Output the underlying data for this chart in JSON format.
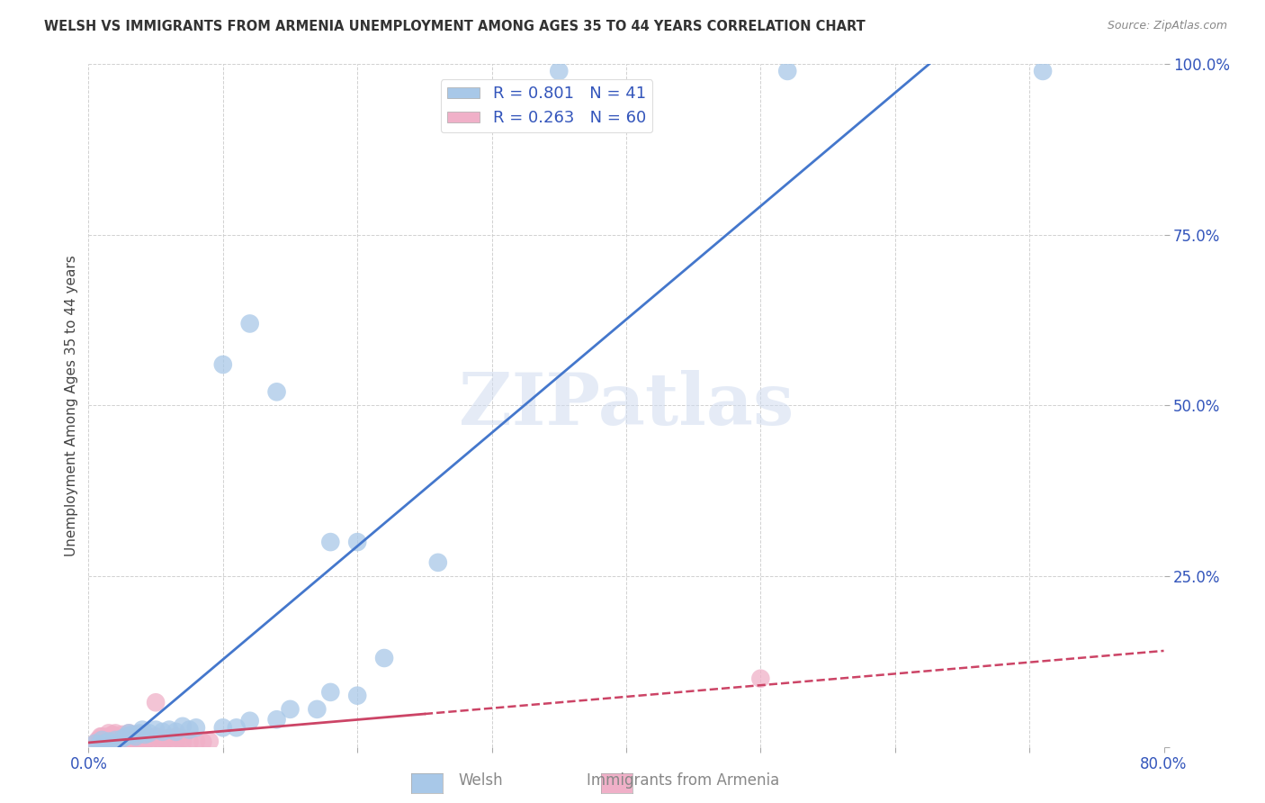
{
  "title": "WELSH VS IMMIGRANTS FROM ARMENIA UNEMPLOYMENT AMONG AGES 35 TO 44 YEARS CORRELATION CHART",
  "source": "Source: ZipAtlas.com",
  "ylabel": "Unemployment Among Ages 35 to 44 years",
  "xlim": [
    0,
    0.8
  ],
  "ylim": [
    0,
    1.0
  ],
  "xtick_vals": [
    0.0,
    0.1,
    0.2,
    0.3,
    0.4,
    0.5,
    0.6,
    0.7,
    0.8
  ],
  "xticklabels": [
    "0.0%",
    "",
    "",
    "",
    "",
    "",
    "",
    "",
    "80.0%"
  ],
  "ytick_vals": [
    0.0,
    0.25,
    0.5,
    0.75,
    1.0
  ],
  "yticklabels": [
    "",
    "25.0%",
    "50.0%",
    "75.0%",
    "100.0%"
  ],
  "welsh_color": "#A8C8E8",
  "armenia_color": "#F0B0C8",
  "welsh_line_color": "#4477CC",
  "armenia_line_color": "#CC4466",
  "welsh_R": 0.801,
  "welsh_N": 41,
  "armenia_R": 0.263,
  "armenia_N": 60,
  "legend_R_color": "#3355BB",
  "watermark": "ZIPatlas",
  "welsh_scatter": [
    [
      0.005,
      0.005
    ],
    [
      0.008,
      0.003
    ],
    [
      0.01,
      0.01
    ],
    [
      0.012,
      0.005
    ],
    [
      0.015,
      0.008
    ],
    [
      0.018,
      0.005
    ],
    [
      0.02,
      0.01
    ],
    [
      0.025,
      0.012
    ],
    [
      0.028,
      0.015
    ],
    [
      0.03,
      0.02
    ],
    [
      0.032,
      0.018
    ],
    [
      0.035,
      0.015
    ],
    [
      0.038,
      0.02
    ],
    [
      0.04,
      0.025
    ],
    [
      0.042,
      0.018
    ],
    [
      0.045,
      0.02
    ],
    [
      0.05,
      0.025
    ],
    [
      0.055,
      0.022
    ],
    [
      0.06,
      0.025
    ],
    [
      0.065,
      0.022
    ],
    [
      0.07,
      0.03
    ],
    [
      0.075,
      0.025
    ],
    [
      0.08,
      0.028
    ],
    [
      0.1,
      0.028
    ],
    [
      0.11,
      0.028
    ],
    [
      0.12,
      0.038
    ],
    [
      0.14,
      0.04
    ],
    [
      0.15,
      0.055
    ],
    [
      0.17,
      0.055
    ],
    [
      0.18,
      0.08
    ],
    [
      0.2,
      0.075
    ],
    [
      0.22,
      0.13
    ],
    [
      0.1,
      0.56
    ],
    [
      0.12,
      0.62
    ],
    [
      0.14,
      0.52
    ],
    [
      0.18,
      0.3
    ],
    [
      0.2,
      0.3
    ],
    [
      0.26,
      0.27
    ],
    [
      0.35,
      0.99
    ],
    [
      0.52,
      0.99
    ],
    [
      0.71,
      0.99
    ]
  ],
  "armenia_scatter": [
    [
      0.005,
      0.005
    ],
    [
      0.007,
      0.01
    ],
    [
      0.008,
      0.008
    ],
    [
      0.009,
      0.015
    ],
    [
      0.01,
      0.005
    ],
    [
      0.01,
      0.01
    ],
    [
      0.01,
      0.015
    ],
    [
      0.012,
      0.008
    ],
    [
      0.012,
      0.012
    ],
    [
      0.015,
      0.005
    ],
    [
      0.015,
      0.01
    ],
    [
      0.015,
      0.015
    ],
    [
      0.015,
      0.02
    ],
    [
      0.018,
      0.007
    ],
    [
      0.018,
      0.012
    ],
    [
      0.018,
      0.018
    ],
    [
      0.02,
      0.005
    ],
    [
      0.02,
      0.01
    ],
    [
      0.02,
      0.015
    ],
    [
      0.02,
      0.02
    ],
    [
      0.022,
      0.008
    ],
    [
      0.022,
      0.013
    ],
    [
      0.025,
      0.006
    ],
    [
      0.025,
      0.012
    ],
    [
      0.025,
      0.018
    ],
    [
      0.028,
      0.008
    ],
    [
      0.028,
      0.015
    ],
    [
      0.03,
      0.005
    ],
    [
      0.03,
      0.01
    ],
    [
      0.03,
      0.015
    ],
    [
      0.03,
      0.02
    ],
    [
      0.032,
      0.008
    ],
    [
      0.032,
      0.012
    ],
    [
      0.035,
      0.006
    ],
    [
      0.035,
      0.012
    ],
    [
      0.035,
      0.018
    ],
    [
      0.038,
      0.008
    ],
    [
      0.038,
      0.015
    ],
    [
      0.04,
      0.006
    ],
    [
      0.04,
      0.012
    ],
    [
      0.04,
      0.018
    ],
    [
      0.042,
      0.008
    ],
    [
      0.045,
      0.007
    ],
    [
      0.045,
      0.013
    ],
    [
      0.05,
      0.008
    ],
    [
      0.05,
      0.015
    ],
    [
      0.055,
      0.006
    ],
    [
      0.055,
      0.012
    ],
    [
      0.06,
      0.007
    ],
    [
      0.06,
      0.013
    ],
    [
      0.065,
      0.008
    ],
    [
      0.065,
      0.015
    ],
    [
      0.07,
      0.007
    ],
    [
      0.07,
      0.012
    ],
    [
      0.075,
      0.007
    ],
    [
      0.08,
      0.008
    ],
    [
      0.085,
      0.007
    ],
    [
      0.09,
      0.008
    ],
    [
      0.05,
      0.065
    ],
    [
      0.5,
      0.1
    ]
  ]
}
